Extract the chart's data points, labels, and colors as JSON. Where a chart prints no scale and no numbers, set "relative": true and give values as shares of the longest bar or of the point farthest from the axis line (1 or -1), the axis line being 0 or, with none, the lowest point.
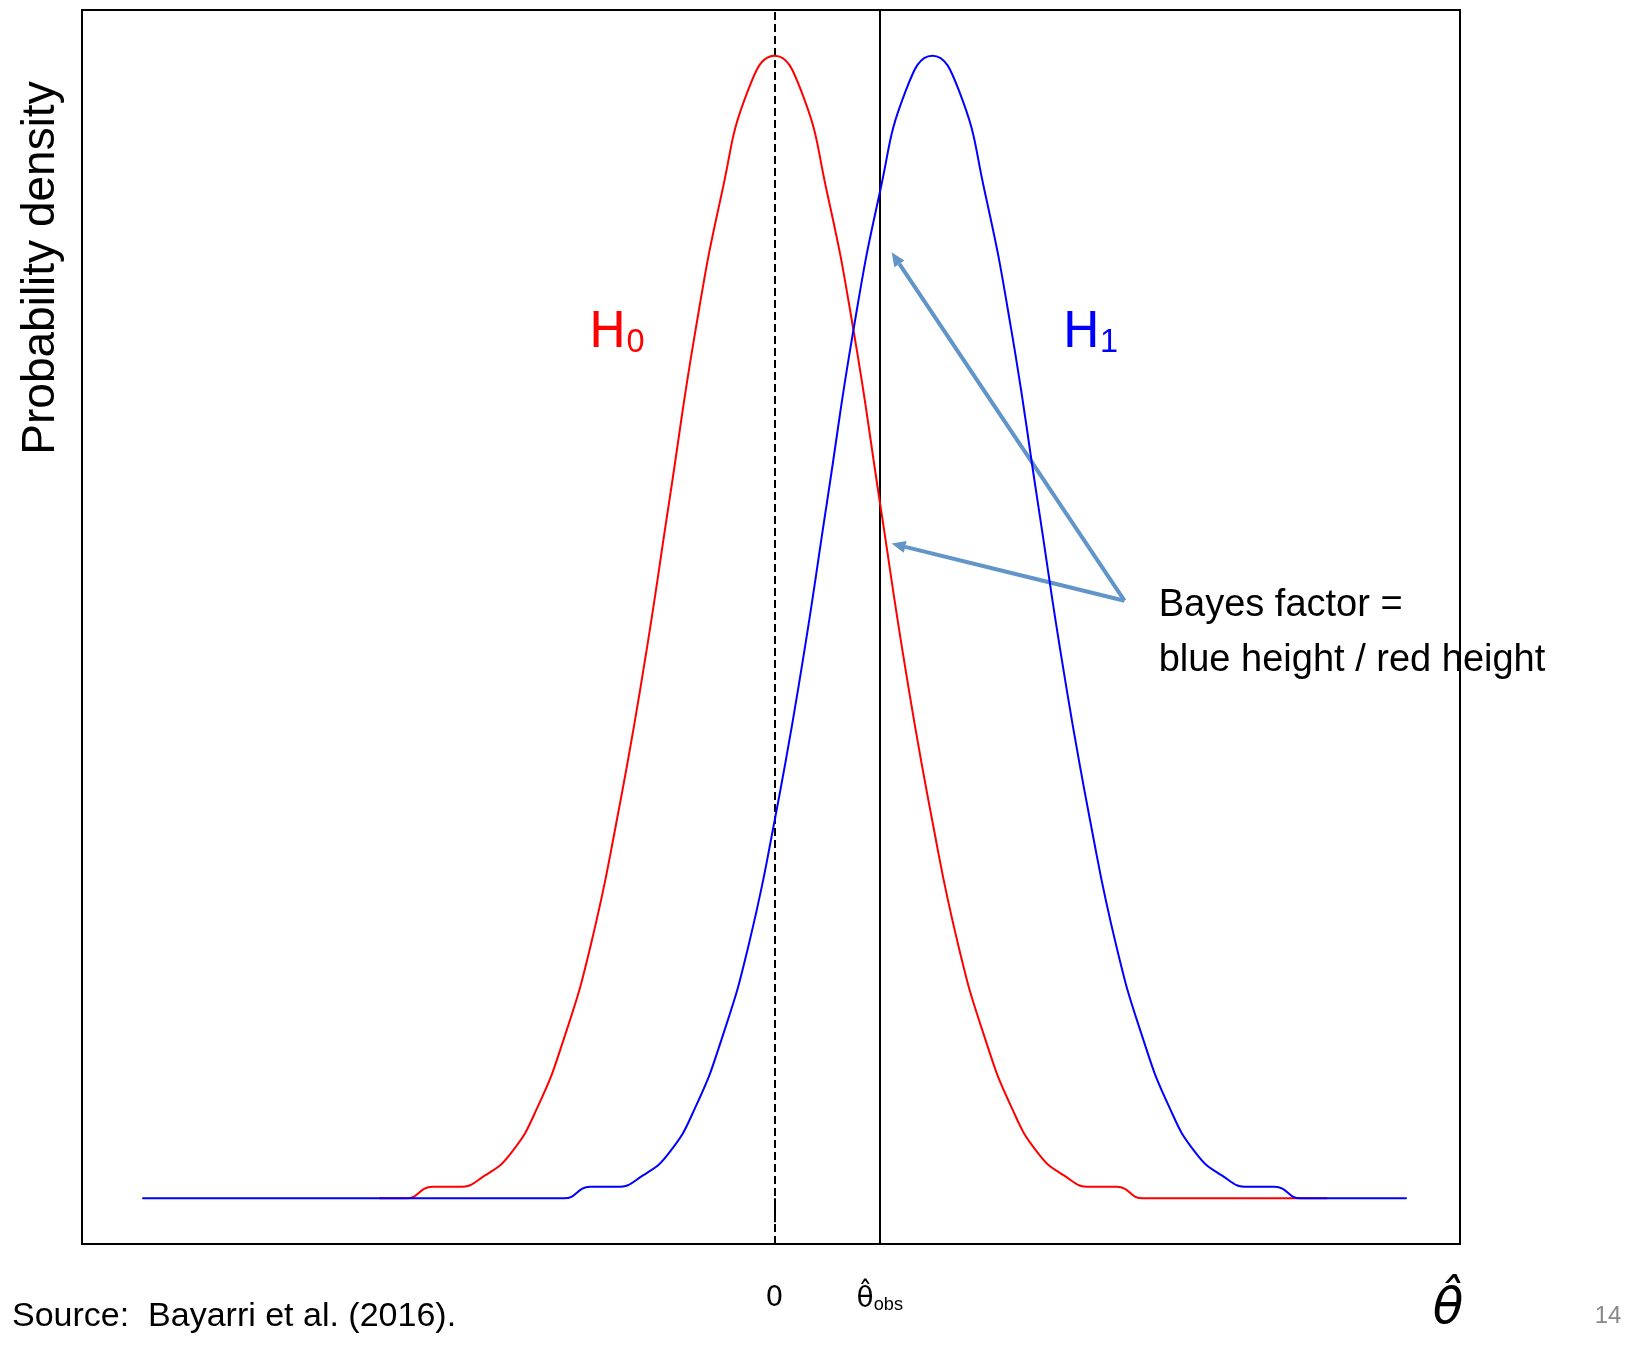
{
  "chart_data": {
    "type": "line",
    "relative": true,
    "ylabel": "Probability density",
    "xlabel": "θ̂",
    "categories": [
      null,
      null,
      null,
      null,
      null,
      null,
      null,
      null,
      null,
      null,
      null,
      null,
      null,
      null,
      null,
      null,
      null,
      null,
      null,
      null,
      null,
      null,
      null,
      null,
      "0",
      null,
      null,
      null,
      "θ̂$_{obs}$",
      null,
      null,
      null,
      null,
      null,
      null,
      null,
      null,
      null,
      null,
      null,
      null,
      null,
      null,
      null,
      null,
      null,
      null,
      null,
      null
    ],
    "series": [
      {
        "name": "H$_{0}$",
        "color": "#ff0000",
        "values": [
          null,
          null,
          null,
          null,
          null,
          null,
          null,
          null,
          null,
          0,
          0,
          0.01,
          0.01,
          0.02,
          0.04,
          0.08,
          0.14,
          0.22,
          0.33,
          0.46,
          0.61,
          0.76,
          0.88,
          0.97,
          1,
          0.97,
          0.88,
          0.76,
          0.61,
          0.46,
          0.33,
          0.22,
          0.14,
          0.08,
          0.04,
          0.02,
          0.01,
          0.01,
          0,
          0,
          0,
          0,
          0,
          0,
          0,
          0,
          null,
          null,
          null
        ]
      },
      {
        "name": "H$_{1}$",
        "color": "#0000ff",
        "values": [
          0,
          0,
          0,
          0,
          0,
          0,
          0,
          0,
          0,
          0,
          0,
          0,
          0,
          0,
          0,
          0,
          0,
          0.01,
          0.01,
          0.02,
          0.04,
          0.08,
          0.14,
          0.22,
          0.33,
          0.46,
          0.61,
          0.76,
          0.88,
          0.97,
          1,
          0.97,
          0.88,
          0.76,
          0.61,
          0.46,
          0.33,
          0.22,
          0.14,
          0.08,
          0.04,
          0.02,
          0.01,
          0.01,
          0,
          0,
          0,
          0,
          0
        ]
      }
    ],
    "ref_lines": [
      {
        "axis": "x",
        "value": "0",
        "line_style": "dashed",
        "color": "#000000"
      },
      {
        "axis": "x",
        "value": "θ̂$_{obs}$",
        "line_style": "solid",
        "color": "#000000"
      }
    ],
    "annotations": [
      "Bayes factor =\nblue height / red height",
      "Source:  Bayarri et al. (2016).",
      "14"
    ],
    "grid": false,
    "legend": false,
    "marker": "none",
    "line_style": "solid"
  }
}
